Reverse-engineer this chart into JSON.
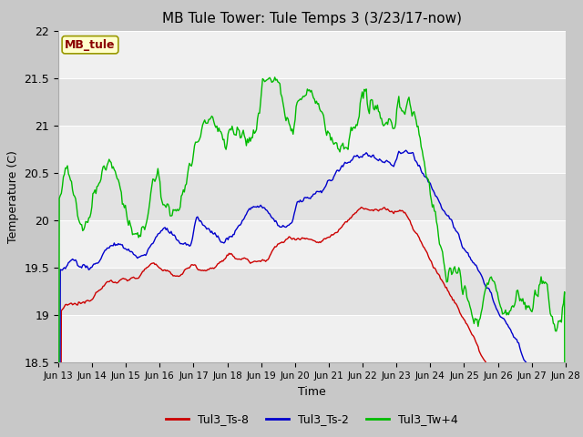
{
  "title": "MB Tule Tower: Tule Temps 3 (3/23/17-now)",
  "xlabel": "Time",
  "ylabel": "Temperature (C)",
  "ylim": [
    18.5,
    22.0
  ],
  "yticks": [
    18.5,
    19.0,
    19.5,
    20.0,
    20.5,
    21.0,
    21.5,
    22.0
  ],
  "x_tick_labels": [
    "Jun 13",
    "Jun 14",
    "Jun 15",
    "Jun 16",
    "Jun 17",
    "Jun 18",
    "Jun 19",
    "Jun 20",
    "Jun 21",
    "Jun 22",
    "Jun 23",
    "Jun 24",
    "Jun 25",
    "Jun 26",
    "Jun 27",
    "Jun 28"
  ],
  "legend_label": "MB_tule",
  "series": {
    "Tul3_Ts-8": {
      "color": "#cc0000"
    },
    "Tul3_Ts-2": {
      "color": "#0000cc"
    },
    "Tul3_Tw+4": {
      "color": "#00bb00"
    }
  },
  "band_colors": [
    "#f0f0f0",
    "#e2e2e2",
    "#f0f0f0",
    "#e2e2e2",
    "#f0f0f0",
    "#e2e2e2",
    "#f0f0f0"
  ],
  "fig_bg": "#c8c8c8",
  "title_fontsize": 11
}
